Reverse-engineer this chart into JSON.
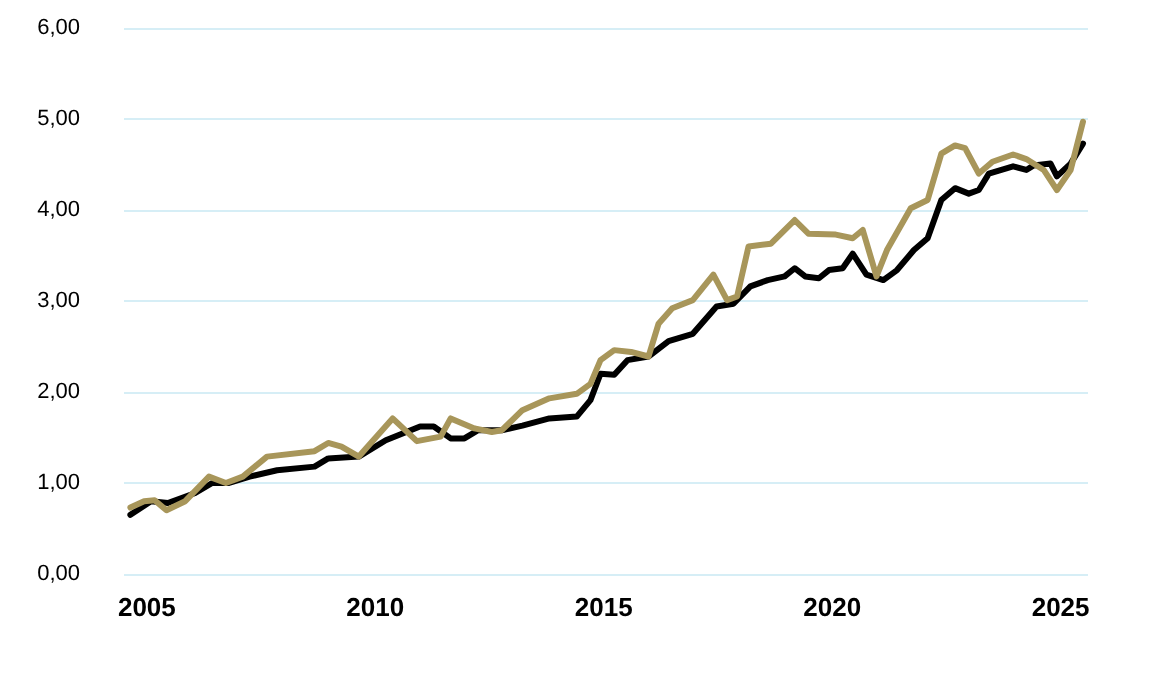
{
  "chart_data": {
    "type": "line",
    "grid": "y",
    "marker": "none",
    "line_style": "solid",
    "xlim": [
      2004.5,
      2025.6
    ],
    "xticks": [
      2005,
      2010,
      2015,
      2020,
      2025
    ],
    "ylim": [
      0,
      6
    ],
    "yticks": [
      {
        "value": 0,
        "label": "0,00"
      },
      {
        "value": 1,
        "label": "1,00"
      },
      {
        "value": 2,
        "label": "2,00"
      },
      {
        "value": 3,
        "label": "3,00"
      },
      {
        "value": 4,
        "label": "4,00"
      },
      {
        "value": 5,
        "label": "5,00"
      },
      {
        "value": 6,
        "label": "6,00"
      }
    ],
    "series": [
      {
        "color": "#000000",
        "x": [
          2004.64,
          2005.09,
          2005.46,
          2006.06,
          2006.43,
          2006.8,
          2007.25,
          2007.85,
          2008.67,
          2008.97,
          2009.64,
          2010.23,
          2010.98,
          2011.28,
          2011.65,
          2011.95,
          2012.25,
          2012.77,
          2013.22,
          2013.81,
          2014.41,
          2014.71,
          2014.93,
          2015.23,
          2015.52,
          2015.98,
          2016.42,
          2016.95,
          2017.47,
          2017.84,
          2018.21,
          2018.59,
          2018.96,
          2019.18,
          2019.41,
          2019.71,
          2019.93,
          2020.23,
          2020.45,
          2020.75,
          2021.12,
          2021.42,
          2021.79,
          2022.09,
          2022.39,
          2022.69,
          2022.99,
          2023.21,
          2023.43,
          2023.96,
          2024.25,
          2024.41,
          2024.78,
          2024.92,
          2025.22,
          2025.49
        ],
        "values": [
          0.65,
          0.8,
          0.78,
          0.89,
          1.0,
          1.0,
          1.07,
          1.14,
          1.18,
          1.27,
          1.29,
          1.47,
          1.62,
          1.62,
          1.49,
          1.49,
          1.58,
          1.58,
          1.63,
          1.71,
          1.73,
          1.91,
          2.2,
          2.19,
          2.35,
          2.39,
          2.56,
          2.64,
          2.94,
          2.97,
          3.16,
          3.23,
          3.27,
          3.36,
          3.27,
          3.25,
          3.34,
          3.36,
          3.52,
          3.29,
          3.23,
          3.34,
          3.56,
          3.69,
          4.11,
          4.24,
          4.18,
          4.22,
          4.4,
          4.48,
          4.44,
          4.49,
          4.51,
          4.37,
          4.51,
          4.73
        ]
      },
      {
        "color": "#a8965a",
        "x": [
          2004.64,
          2004.94,
          2005.17,
          2005.43,
          2005.84,
          2006.36,
          2006.73,
          2007.1,
          2007.63,
          2008.67,
          2008.97,
          2009.26,
          2009.64,
          2010.38,
          2010.91,
          2011.43,
          2011.65,
          2012.17,
          2012.55,
          2012.77,
          2013.22,
          2013.81,
          2014.41,
          2014.71,
          2014.93,
          2015.23,
          2015.6,
          2015.98,
          2016.2,
          2016.5,
          2016.95,
          2017.4,
          2017.7,
          2017.92,
          2018.17,
          2018.66,
          2019.18,
          2019.48,
          2020.08,
          2020.45,
          2020.67,
          2020.97,
          2021.2,
          2021.72,
          2022.09,
          2022.39,
          2022.69,
          2022.91,
          2023.21,
          2023.51,
          2023.96,
          2024.25,
          2024.63,
          2024.92,
          2025.22,
          2025.49
        ],
        "values": [
          0.73,
          0.8,
          0.81,
          0.7,
          0.8,
          1.07,
          1.0,
          1.07,
          1.29,
          1.35,
          1.44,
          1.4,
          1.29,
          1.71,
          1.46,
          1.51,
          1.71,
          1.6,
          1.56,
          1.58,
          1.8,
          1.93,
          1.98,
          2.09,
          2.35,
          2.46,
          2.44,
          2.39,
          2.75,
          2.92,
          3.01,
          3.29,
          3.01,
          3.05,
          3.6,
          3.63,
          3.89,
          3.74,
          3.73,
          3.69,
          3.78,
          3.27,
          3.56,
          4.02,
          4.11,
          4.62,
          4.71,
          4.68,
          4.4,
          4.53,
          4.61,
          4.56,
          4.44,
          4.22,
          4.44,
          4.97
        ]
      }
    ]
  }
}
